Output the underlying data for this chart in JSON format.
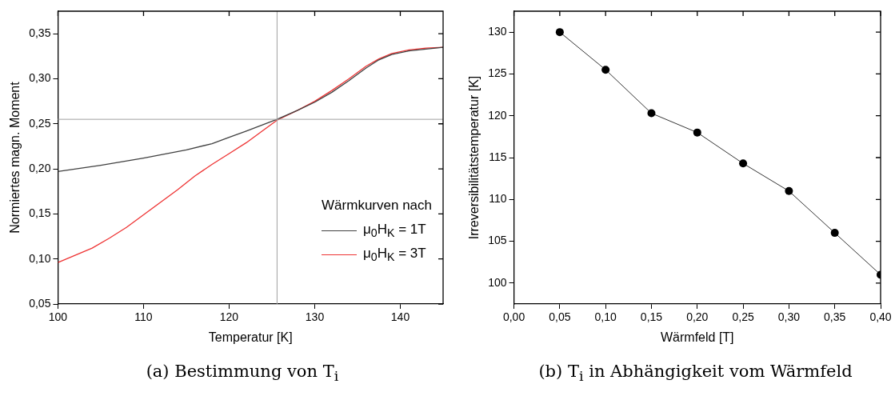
{
  "chart_data": [
    {
      "type": "line",
      "title": "(a) Bestimmung von T$_{i}$",
      "xlabel": "Temperatur [K]",
      "ylabel": "Normiertes magn. Moment",
      "legend_title": "Wärmkurven nach",
      "legend": "right",
      "grid": false,
      "marker": "none",
      "line_style": "solid",
      "xlim": [
        100,
        145
      ],
      "xticks": [
        100,
        110,
        120,
        130,
        140
      ],
      "ylim": [
        0.05,
        0.375
      ],
      "yticks": [
        {
          "value": 0.05,
          "label": "0,05"
        },
        {
          "value": 0.1,
          "label": "0,10"
        },
        {
          "value": 0.15,
          "label": "0,15"
        },
        {
          "value": 0.2,
          "label": "0,20"
        },
        {
          "value": 0.25,
          "label": "0,25"
        },
        {
          "value": 0.3,
          "label": "0,30"
        },
        {
          "value": 0.35,
          "label": "0,35"
        }
      ],
      "ref_lines": [
        {
          "axis": "x",
          "value": 125.6,
          "color": "#a0a0a0"
        },
        {
          "axis": "y",
          "value": 0.255,
          "color": "#a0a0a0"
        }
      ],
      "series": [
        {
          "name": "μ$_{0}$H$_{K}$ = 1T",
          "color": "#404040",
          "x": [
            100,
            105,
            110,
            115,
            118,
            120,
            122,
            125.6,
            128,
            130,
            132,
            134,
            136,
            137.5,
            139,
            141,
            143,
            145
          ],
          "values": [
            0.197,
            0.204,
            0.212,
            0.221,
            0.228,
            0.235,
            0.242,
            0.255,
            0.265,
            0.274,
            0.285,
            0.298,
            0.312,
            0.321,
            0.327,
            0.331,
            0.333,
            0.335
          ]
        },
        {
          "name": "μ$_{0}$H$_{K}$ = 3T",
          "color": "#ee3333",
          "x": [
            100,
            102,
            104,
            106,
            108,
            110,
            112,
            114,
            116,
            118,
            120,
            122,
            124,
            125.6,
            128,
            130,
            132,
            134,
            136,
            137.5,
            139,
            141,
            143,
            145
          ],
          "values": [
            0.096,
            0.104,
            0.112,
            0.123,
            0.135,
            0.149,
            0.163,
            0.177,
            0.192,
            0.205,
            0.217,
            0.229,
            0.243,
            0.254,
            0.265,
            0.275,
            0.287,
            0.3,
            0.314,
            0.322,
            0.328,
            0.332,
            0.334,
            0.335
          ]
        }
      ]
    },
    {
      "type": "line",
      "title": "(b) T$_{i}$ in Abhängigkeit vom Wärmfeld",
      "xlabel": "Wärmfeld [T]",
      "ylabel": "Irreversibilitätstemperatur [K]",
      "grid": false,
      "marker": "circle",
      "line_style": "solid",
      "xlim": [
        0,
        0.4
      ],
      "xticks": [
        {
          "value": 0,
          "label": "0,00"
        },
        {
          "value": 0.05,
          "label": "0,05"
        },
        {
          "value": 0.1,
          "label": "0,10"
        },
        {
          "value": 0.15,
          "label": "0,15"
        },
        {
          "value": 0.2,
          "label": "0,20"
        },
        {
          "value": 0.25,
          "label": "0,25"
        },
        {
          "value": 0.3,
          "label": "0,30"
        },
        {
          "value": 0.35,
          "label": "0,35"
        },
        {
          "value": 0.4,
          "label": "0,40"
        }
      ],
      "ylim": [
        97.5,
        132.5
      ],
      "yticks": [
        100,
        105,
        110,
        115,
        120,
        125,
        130
      ],
      "series": [
        {
          "color": "#000000",
          "x": [
            0.05,
            0.1,
            0.15,
            0.2,
            0.25,
            0.3,
            0.35,
            0.4
          ],
          "values": [
            130,
            125.5,
            120.3,
            118,
            114.3,
            111,
            106,
            101
          ]
        }
      ]
    }
  ]
}
